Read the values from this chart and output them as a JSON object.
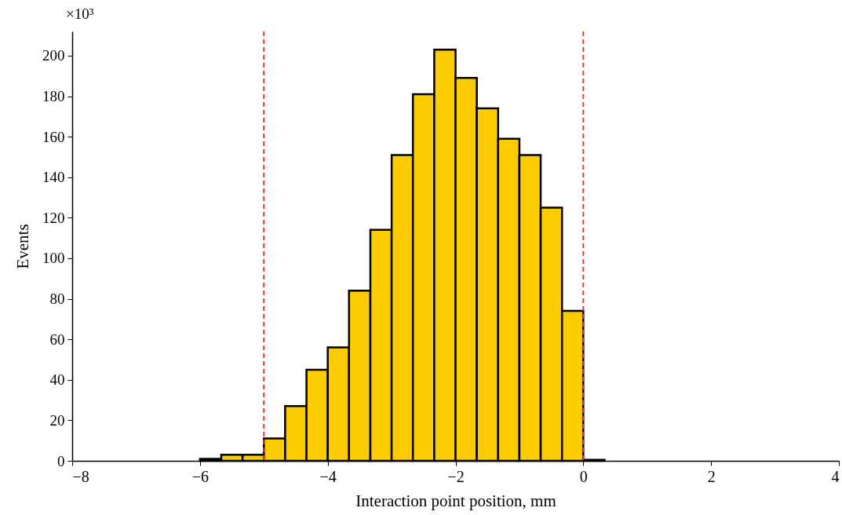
{
  "chart_data": {
    "type": "histogram",
    "xlabel": "Interaction point position, mm",
    "ylabel": "Events",
    "annotations": [
      "×10³"
    ],
    "bins": [
      -6,
      -5.667,
      -5.333,
      -5,
      -4.667,
      -4.333,
      -4,
      -3.667,
      -3.333,
      -3,
      -2.667,
      -2.333,
      -2,
      -1.667,
      -1.333,
      -1,
      -0.667,
      -0.333,
      0,
      0.333
    ],
    "values": [
      1,
      3,
      3,
      11,
      27,
      45,
      56,
      84,
      114,
      151,
      181,
      203,
      189,
      174,
      159,
      151,
      125,
      74,
      0.5
    ],
    "color": "#fccc00",
    "xlim": [
      -8,
      4
    ],
    "xticks": [
      {
        "value": -8,
        "label": "−8"
      },
      {
        "value": -6,
        "label": "−6"
      },
      {
        "value": -4,
        "label": "−4"
      },
      {
        "value": -2,
        "label": "−2"
      },
      0,
      2,
      4
    ],
    "ylim": [
      0,
      212
    ],
    "yticks": [
      0,
      20,
      40,
      60,
      80,
      100,
      120,
      140,
      160,
      180,
      200
    ],
    "ref_lines": [
      {
        "axis": "x",
        "value": -5,
        "color": "#e03c31",
        "line_style": "dashed"
      },
      {
        "axis": "x",
        "value": 0,
        "color": "#e03c31",
        "line_style": "dashed"
      }
    ],
    "grid": false
  }
}
